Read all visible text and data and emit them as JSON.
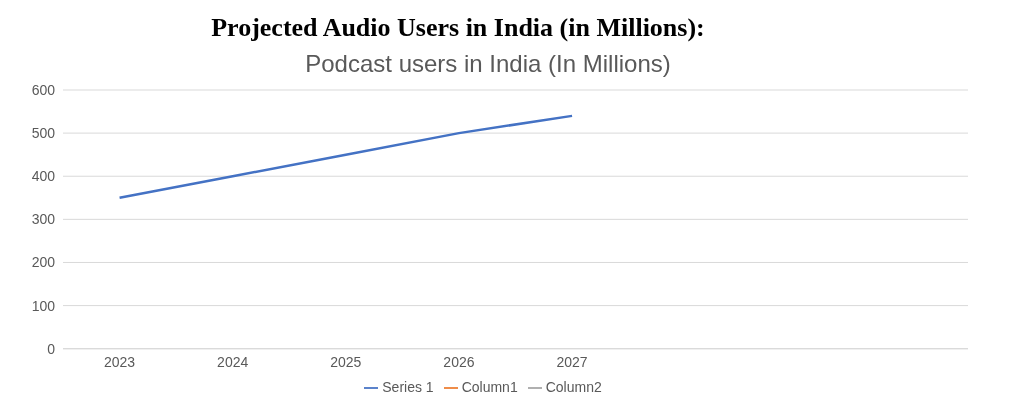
{
  "chart_data": {
    "type": "line",
    "title": "Projected Audio Users in India (in Millions):",
    "subtitle": "Podcast users in India (In Millions)",
    "categories": [
      "2023",
      "2024",
      "2025",
      "2026",
      "2027",
      null,
      null,
      null
    ],
    "series": [
      {
        "name": "Series 1",
        "color": "#4472c4",
        "values": [
          350,
          400,
          450,
          500,
          540,
          null,
          null,
          null
        ]
      },
      {
        "name": "Column1",
        "color": "#ed7d31",
        "values": [
          null,
          null,
          null,
          null,
          null,
          null,
          null,
          null
        ]
      },
      {
        "name": "Column2",
        "color": "#a5a5a5",
        "values": [
          null,
          null,
          null,
          null,
          null,
          null,
          null,
          null
        ]
      }
    ],
    "ylim": [
      0,
      600
    ],
    "yticks": [
      0,
      100,
      200,
      300,
      400,
      500,
      600
    ],
    "grid": "y",
    "legend": "bottom",
    "marker": "none",
    "line_style": "solid"
  }
}
